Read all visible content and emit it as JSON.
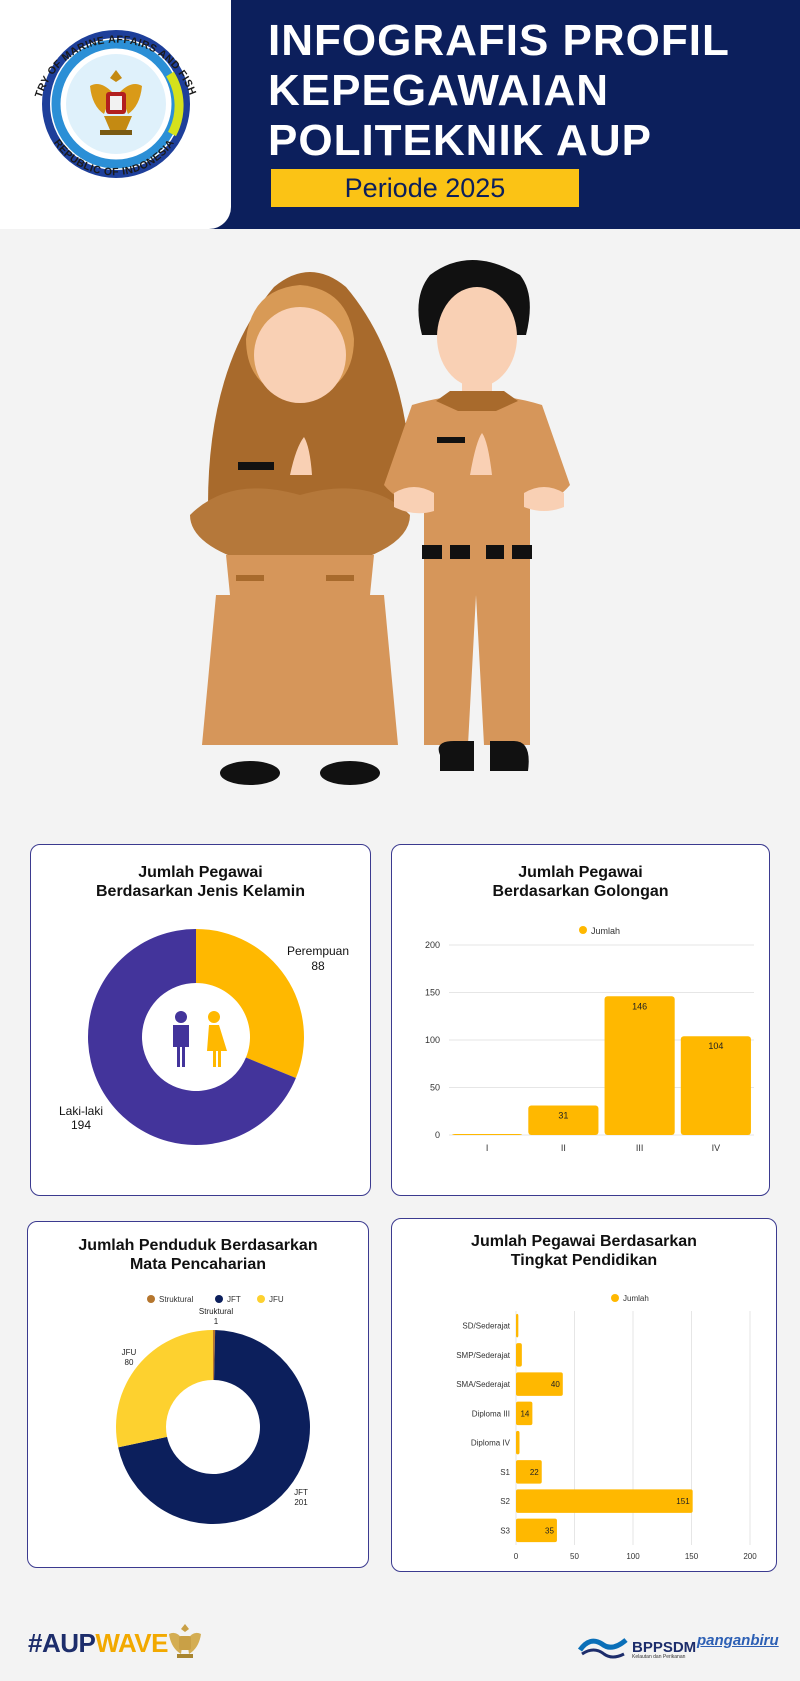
{
  "header": {
    "title_lines": [
      "INFOGRAFIS PROFIL",
      "KEPEGAWAIAN",
      "POLITEKNIK AUP"
    ],
    "period": "Periode 2025",
    "logo_text_top": "MINISTRY OF MARINE AFFAIRS AND FISHERIES",
    "logo_text_bottom": "REPUBLIC OF INDONESIA"
  },
  "colors": {
    "navy": "#0c1f5c",
    "yellow": "#fbc315",
    "amber": "#ffb800",
    "purple": "#43349b",
    "brown": "#b5762e",
    "jfu_yellow": "#fdd12f"
  },
  "chart_data": [
    {
      "id": "gender",
      "type": "pie",
      "title_lines": [
        "Jumlah Pegawai",
        "Berdasarkan Jenis Kelamin"
      ],
      "slices": [
        {
          "label": "Perempuan",
          "value": 88,
          "color": "#ffb800"
        },
        {
          "label": "Laki-laki",
          "value": 194,
          "color": "#43349b"
        }
      ],
      "center_icon": "people-icon"
    },
    {
      "id": "golongan",
      "type": "bar",
      "title_lines": [
        "Jumlah Pegawai",
        "Berdasarkan Golongan"
      ],
      "legend": "Jumlah",
      "legend_position": "top",
      "categories": [
        "I",
        "II",
        "III",
        "IV"
      ],
      "values": [
        1,
        31,
        146,
        104
      ],
      "data_labels": [
        "",
        "31",
        "146",
        "104"
      ],
      "ylim": [
        0,
        200
      ],
      "yticks": [
        0,
        50,
        100,
        150,
        200
      ],
      "grid": true,
      "color": "#ffb800"
    },
    {
      "id": "jabatan",
      "type": "pie",
      "title_lines": [
        "Jumlah Penduduk Berdasarkan",
        "Mata Pencaharian"
      ],
      "legend_position": "top",
      "slices": [
        {
          "label": "Struktural",
          "value": 1,
          "color": "#b5762e"
        },
        {
          "label": "JFT",
          "value": 201,
          "color": "#0c1f5c"
        },
        {
          "label": "JFU",
          "value": 80,
          "color": "#fdd12f"
        }
      ]
    },
    {
      "id": "pendidikan",
      "type": "bar",
      "orientation": "horizontal",
      "title_lines": [
        "Jumlah Pegawai Berdasarkan",
        "Tingkat Pendidikan"
      ],
      "legend": "Jumlah",
      "legend_position": "top",
      "categories": [
        "SD/Sederajat",
        "SMP/Sederajat",
        "SMA/Sederajat",
        "Diploma III",
        "Diploma IV",
        "S1",
        "S2",
        "S3"
      ],
      "values": [
        2,
        5,
        40,
        14,
        3,
        22,
        151,
        35
      ],
      "data_labels": [
        "",
        "",
        "40",
        "14",
        "",
        "22",
        "151",
        "35"
      ],
      "xlim": [
        0,
        200
      ],
      "xticks": [
        0,
        50,
        100,
        150,
        200
      ],
      "grid": true,
      "color": "#ffb800"
    }
  ],
  "footer": {
    "hashtag_part1": "#AUP",
    "hashtag_part2": "WAVE",
    "bppsdm": "BPPSDM",
    "bppsdm_sub": "Kelautan dan Perikanan",
    "panganbiru": "panganbiru"
  }
}
